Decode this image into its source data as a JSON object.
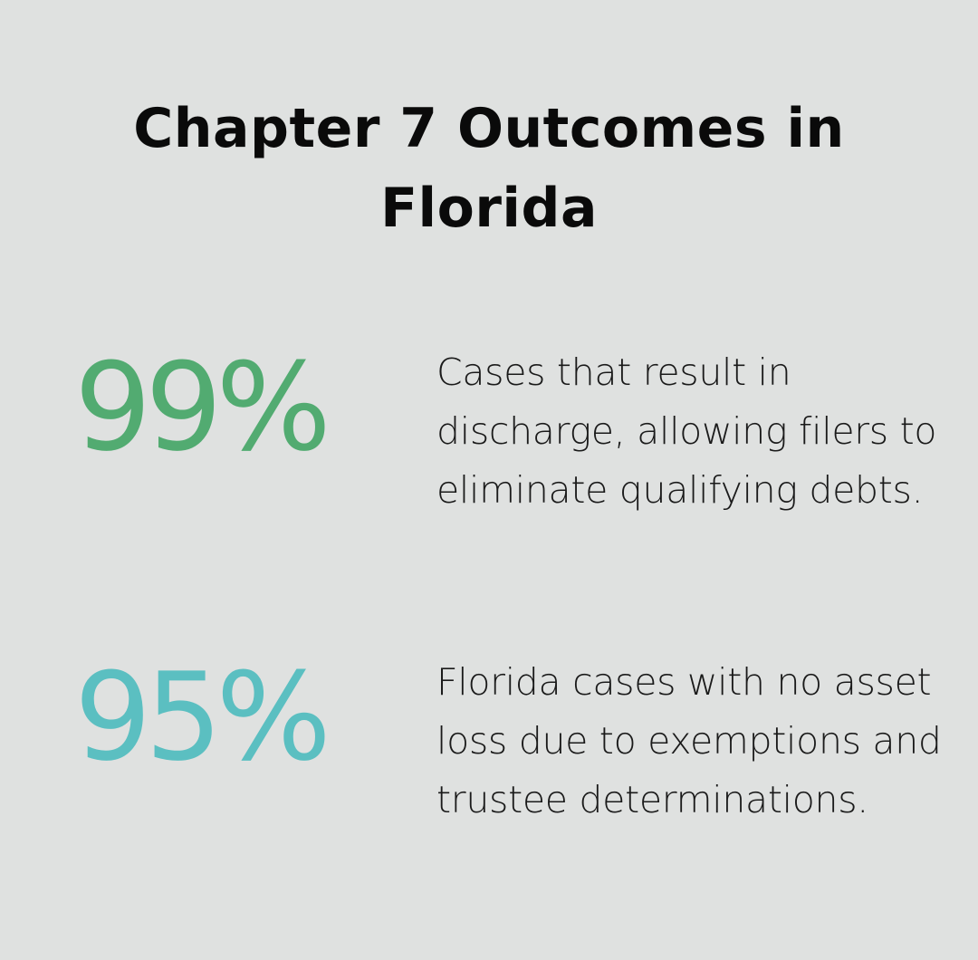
{
  "title": "Chapter 7 Outcomes in Florida",
  "stats": [
    {
      "value": "99%",
      "description": "Cases that result in discharge, allowing filers to eliminate qualifying debts.",
      "color": "#52ab71"
    },
    {
      "value": "95%",
      "description": "Florida cases with no asset loss due to exemptions and trustee determinations.",
      "color": "#5bbfc1"
    }
  ]
}
